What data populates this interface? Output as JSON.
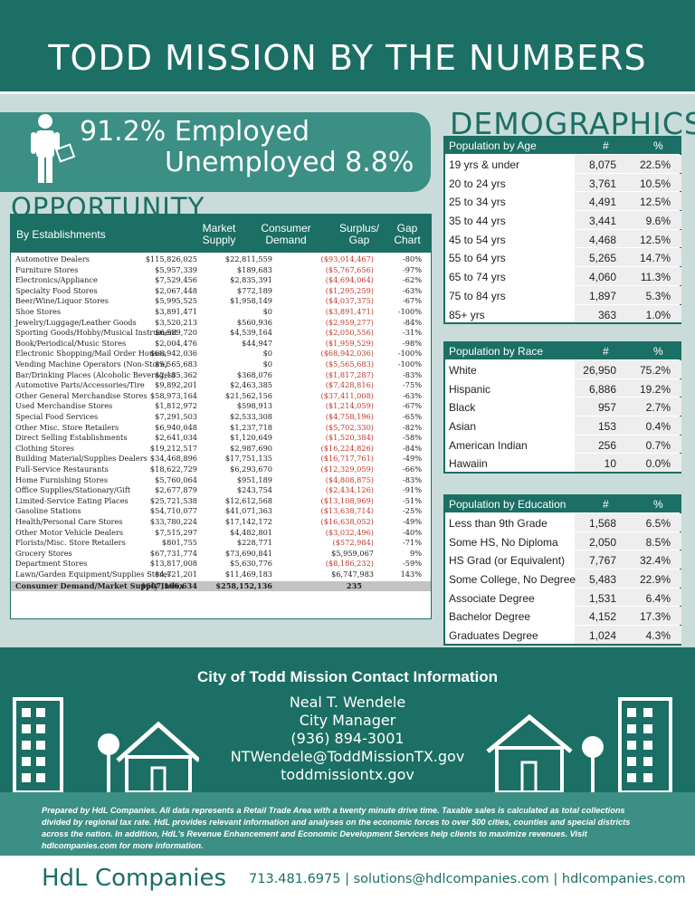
{
  "header": {
    "title": "TODD MISSION BY THE NUMBERS"
  },
  "employment": {
    "employed": "91.2% Employed",
    "unemployed": "Unemployed 8.8%"
  },
  "opportunity": {
    "title": "OPPORTUNITY",
    "headers": {
      "establishments": "By Establishments",
      "market_supply": "Market Supply",
      "consumer_demand": "Consumer Demand",
      "surplus_gap": "Surplus/ Gap",
      "gap_chart": "Gap Chart"
    },
    "rows": [
      {
        "name": "Automotive Dealers",
        "supply": "$115,826,025",
        "demand": "$22,811,559",
        "gap": "($93,014,467)",
        "pct": "-80%",
        "neg": true
      },
      {
        "name": "Furniture Stores",
        "supply": "$5,957,339",
        "demand": "$189,683",
        "gap": "($5,767,656)",
        "pct": "-97%",
        "neg": true
      },
      {
        "name": "Electronics/Appliance",
        "supply": "$7,529,456",
        "demand": "$2,835,391",
        "gap": "($4,694,064)",
        "pct": "-62%",
        "neg": true
      },
      {
        "name": "Specialty Food Stores",
        "supply": "$2,067,448",
        "demand": "$772,189",
        "gap": "($1,295,259)",
        "pct": "-63%",
        "neg": true
      },
      {
        "name": "Beer/Wine/Liquor Stores",
        "supply": "$5,995,525",
        "demand": "$1,958,149",
        "gap": "($4,037,375)",
        "pct": "-67%",
        "neg": true
      },
      {
        "name": "Shoe Stores",
        "supply": "$3,891,471",
        "demand": "$0",
        "gap": "($3,891,471)",
        "pct": "-100%",
        "neg": true
      },
      {
        "name": "Jewelry/Luggage/Leather Goods",
        "supply": "$3,520,213",
        "demand": "$560,936",
        "gap": "($2,959,277)",
        "pct": "-84%",
        "neg": true
      },
      {
        "name": "Sporting Goods/Hobby/Musical Instrument",
        "supply": "$6,589,720",
        "demand": "$4,539,164",
        "gap": "($2,050,556)",
        "pct": "-31%",
        "neg": true
      },
      {
        "name": "Book/Periodical/Music Stores",
        "supply": "$2,004,476",
        "demand": "$44,947",
        "gap": "($1,959,529)",
        "pct": "-98%",
        "neg": true
      },
      {
        "name": "Electronic Shopping/Mail Order Houses",
        "supply": "$68,942,036",
        "demand": "$0",
        "gap": "($68,942,036)",
        "pct": "-100%",
        "neg": true
      },
      {
        "name": "Vending Machine Operators (Non-Store)",
        "supply": "$5,565,683",
        "demand": "$0",
        "gap": "($5,565,683)",
        "pct": "-100%",
        "neg": true
      },
      {
        "name": "Bar/Drinking Places (Alcoholic Beverages)",
        "supply": "$2,185,362",
        "demand": "$368,076",
        "gap": "($1,817,287)",
        "pct": "-83%",
        "neg": true
      },
      {
        "name": "Automotive Parts/Accessories/Tire",
        "supply": "$9,892,201",
        "demand": "$2,463,385",
        "gap": "($7,428,816)",
        "pct": "-75%",
        "neg": true
      },
      {
        "name": "Other General Merchandise Stores",
        "supply": "$58,973,164",
        "demand": "$21,562,156",
        "gap": "($37,411,008)",
        "pct": "-63%",
        "neg": true
      },
      {
        "name": "Used Merchandise Stores",
        "supply": "$1,812,972",
        "demand": "$598,913",
        "gap": "($1,214,059)",
        "pct": "-67%",
        "neg": true
      },
      {
        "name": "Special Food Services",
        "supply": "$7,291,503",
        "demand": "$2,533,308",
        "gap": "($4,758,196)",
        "pct": "-65%",
        "neg": true
      },
      {
        "name": "Other Misc. Store Retailers",
        "supply": "$6,940,048",
        "demand": "$1,237,718",
        "gap": "($5,702,330)",
        "pct": "-82%",
        "neg": true
      },
      {
        "name": "Direct Selling Establishments",
        "supply": "$2,641,034",
        "demand": "$1,120,649",
        "gap": "($1,520,384)",
        "pct": "-58%",
        "neg": true
      },
      {
        "name": "Clothing Stores",
        "supply": "$19,212,517",
        "demand": "$2,987,690",
        "gap": "($16,224,826)",
        "pct": "-84%",
        "neg": true
      },
      {
        "name": "Building Material/Supplies Dealers",
        "supply": "$34,468,896",
        "demand": "$17,751,135",
        "gap": "($16,717,761)",
        "pct": "-49%",
        "neg": true
      },
      {
        "name": "Full-Service Restaurants",
        "supply": "$18,622,729",
        "demand": "$6,293,670",
        "gap": "($12,329,059)",
        "pct": "-66%",
        "neg": true
      },
      {
        "name": "Home Furnishing Stores",
        "supply": "$5,760,064",
        "demand": "$951,189",
        "gap": "($4,808,875)",
        "pct": "-83%",
        "neg": true
      },
      {
        "name": "Office Supplies/Stationary/Gift",
        "supply": "$2,677,879",
        "demand": "$243,754",
        "gap": "($2,434,126)",
        "pct": "-91%",
        "neg": true
      },
      {
        "name": "Limited-Service Eating Places",
        "supply": "$25,721,538",
        "demand": "$12,612,568",
        "gap": "($13,108,969)",
        "pct": "-51%",
        "neg": true
      },
      {
        "name": "Gasoline Stations",
        "supply": "$54,710,077",
        "demand": "$41,071,363",
        "gap": "($13,638,714)",
        "pct": "-25%",
        "neg": true
      },
      {
        "name": "Health/Personal Care Stores",
        "supply": "$33,780,224",
        "demand": "$17,142,172",
        "gap": "($16,638,052)",
        "pct": "-49%",
        "neg": true
      },
      {
        "name": "Other Motor Vehicle Dealers",
        "supply": "$7,515,297",
        "demand": "$4,482,801",
        "gap": "($3,032,496)",
        "pct": "-40%",
        "neg": true
      },
      {
        "name": "Florists/Misc. Store Retailers",
        "supply": "$801,755",
        "demand": "$228,771",
        "gap": "($572,984)",
        "pct": "-71%",
        "neg": true
      },
      {
        "name": "Grocery Stores",
        "supply": "$67,731,774",
        "demand": "$73,690,841",
        "gap": "$5,959,067",
        "pct": "9%",
        "neg": false
      },
      {
        "name": "Department Stores",
        "supply": "$13,817,008",
        "demand": "$5,630,776",
        "gap": "($8,186,232)",
        "pct": "-59%",
        "neg": true
      },
      {
        "name": "Lawn/Garden Equipment/Supplies Stores",
        "supply": "$4,721,201",
        "demand": "$11,469,183",
        "gap": "$6,747,983",
        "pct": "143%",
        "neg": false
      }
    ],
    "total": {
      "name": "Consumer Demand/Market Supply Index",
      "supply": "$607,166,634",
      "demand": "$258,152,136",
      "gap": "235"
    }
  },
  "demographics": {
    "title": "DEMOGRAPHICS",
    "age": {
      "header": "Population by Age",
      "num": "#",
      "pct": "%",
      "rows": [
        {
          "label": "19 yrs & under",
          "n": "8,075",
          "p": "22.5%"
        },
        {
          "label": "20 to 24 yrs",
          "n": "3,761",
          "p": "10.5%"
        },
        {
          "label": "25 to 34 yrs",
          "n": "4,491",
          "p": "12.5%"
        },
        {
          "label": "35 to 44 yrs",
          "n": "3,441",
          "p": "9.6%"
        },
        {
          "label": "45 to 54 yrs",
          "n": "4,468",
          "p": "12.5%"
        },
        {
          "label": "55 to 64 yrs",
          "n": "5,265",
          "p": "14.7%"
        },
        {
          "label": "65 to 74 yrs",
          "n": "4,060",
          "p": "11.3%"
        },
        {
          "label": "75 to 84 yrs",
          "n": "1,897",
          "p": "5.3%"
        },
        {
          "label": "85+ yrs",
          "n": "363",
          "p": "1.0%"
        }
      ]
    },
    "race": {
      "header": "Population by Race",
      "num": "#",
      "pct": "%",
      "rows": [
        {
          "label": "White",
          "n": "26,950",
          "p": "75.2%"
        },
        {
          "label": "Hispanic",
          "n": "6,886",
          "p": "19.2%"
        },
        {
          "label": "Black",
          "n": "957",
          "p": "2.7%"
        },
        {
          "label": "Asian",
          "n": "153",
          "p": "0.4%"
        },
        {
          "label": "American Indian",
          "n": "256",
          "p": "0.7%"
        },
        {
          "label": "Hawaiin",
          "n": "10",
          "p": "0.0%"
        }
      ]
    },
    "education": {
      "header": "Population by Education",
      "num": "#",
      "pct": "%",
      "rows": [
        {
          "label": "Less than 9th Grade",
          "n": "1,568",
          "p": "6.5%"
        },
        {
          "label": "Some HS, No Diploma",
          "n": "2,050",
          "p": "8.5%"
        },
        {
          "label": "HS Grad (or Equivalent)",
          "n": "7,767",
          "p": "32.4%"
        },
        {
          "label": "Some College, No Degree",
          "n": "5,483",
          "p": "22.9%"
        },
        {
          "label": "Associate Degree",
          "n": "1,531",
          "p": "6.4%"
        },
        {
          "label": "Bachelor Degree",
          "n": "4,152",
          "p": "17.3%"
        },
        {
          "label": "Graduates Degree",
          "n": "1,024",
          "p": "4.3%"
        }
      ]
    }
  },
  "contact": {
    "title": "City of Todd Mission Contact Information",
    "name": "Neal T. Wendele",
    "role": "City Manager",
    "phone": "(936) 894-3001",
    "email": "NTWendele@ToddMissionTX.gov",
    "web": "toddmissiontx.gov"
  },
  "footnote": "Prepared by HdL Companies. All data represents a Retail Trade Area with a twenty minute drive time. Taxable sales is calculated as total collections divided by regional tax rate. HdL provides relevant information and analyses on the economic forces to over 500 cities, counties and special districts across the nation. In addition, HdL's Revenue Enhancement and Economic Development Services help clients to maximize revenues. Visit hdlcompanies.com for more information.",
  "footer": {
    "logo_hdl": "HdL",
    "logo_companies": "Companies",
    "contact_line": "713.481.6975  |  solutions@hdlcompanies.com  |  hdlcompanies.com"
  },
  "colors": {
    "primary": "#1b6f64",
    "secondary": "#3b8f84",
    "background": "#c9dcda",
    "negative": "#c0392b"
  }
}
